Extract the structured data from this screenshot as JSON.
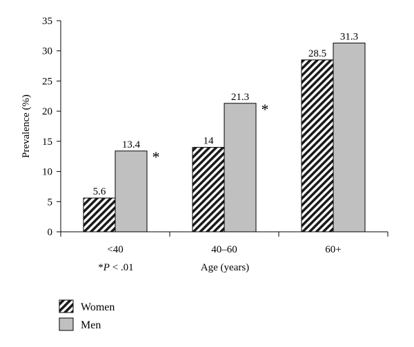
{
  "chart_data": {
    "type": "bar",
    "categories": [
      "<40",
      "40–60",
      "60+"
    ],
    "series": [
      {
        "name": "Women",
        "values": [
          5.6,
          14,
          28.5
        ],
        "labels": [
          "5.6",
          "14",
          "28.5"
        ],
        "pattern": "diagonal-hatch"
      },
      {
        "name": "Men",
        "values": [
          13.4,
          21.3,
          31.3
        ],
        "labels": [
          "13.4",
          "21.3",
          "31.3"
        ],
        "color": "#c0c0c0"
      }
    ],
    "significance_marks": [
      {
        "category_index": 0,
        "series_index": 1,
        "text": "*"
      },
      {
        "category_index": 1,
        "series_index": 1,
        "text": "*"
      }
    ],
    "footnote": {
      "star": "*",
      "p": "P",
      "rest": " < .01"
    },
    "xlabel": "Age (years)",
    "ylabel": "Prevalence (%)",
    "ylim": [
      0,
      35
    ],
    "yticks": [
      0,
      5,
      10,
      15,
      20,
      25,
      30,
      35
    ],
    "grid": false,
    "legend_position": "bottom-left"
  }
}
